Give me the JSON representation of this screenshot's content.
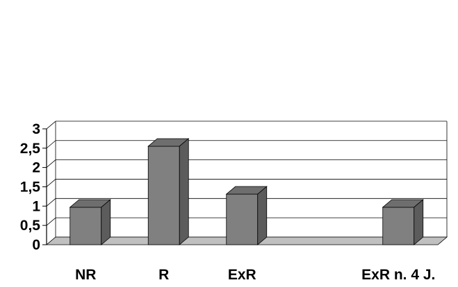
{
  "chart_data": {
    "type": "bar",
    "categories": [
      "NR",
      "R",
      "ExR",
      "",
      "ExR n. 4 J."
    ],
    "values": [
      0.97,
      2.55,
      1.31,
      null,
      0.97
    ],
    "title": "",
    "xlabel": "",
    "ylabel": "",
    "ylim": [
      0,
      3
    ],
    "yticks": [
      "0",
      "0,5",
      "1",
      "1,5",
      "2",
      "2,5",
      "3"
    ],
    "grid": true,
    "style": "3d",
    "colors": {
      "bar_front": "#808080",
      "bar_top": "#6e6e6e",
      "bar_side": "#5c5c5c",
      "floor": "#c0c0c0",
      "grid": "#000000"
    }
  }
}
